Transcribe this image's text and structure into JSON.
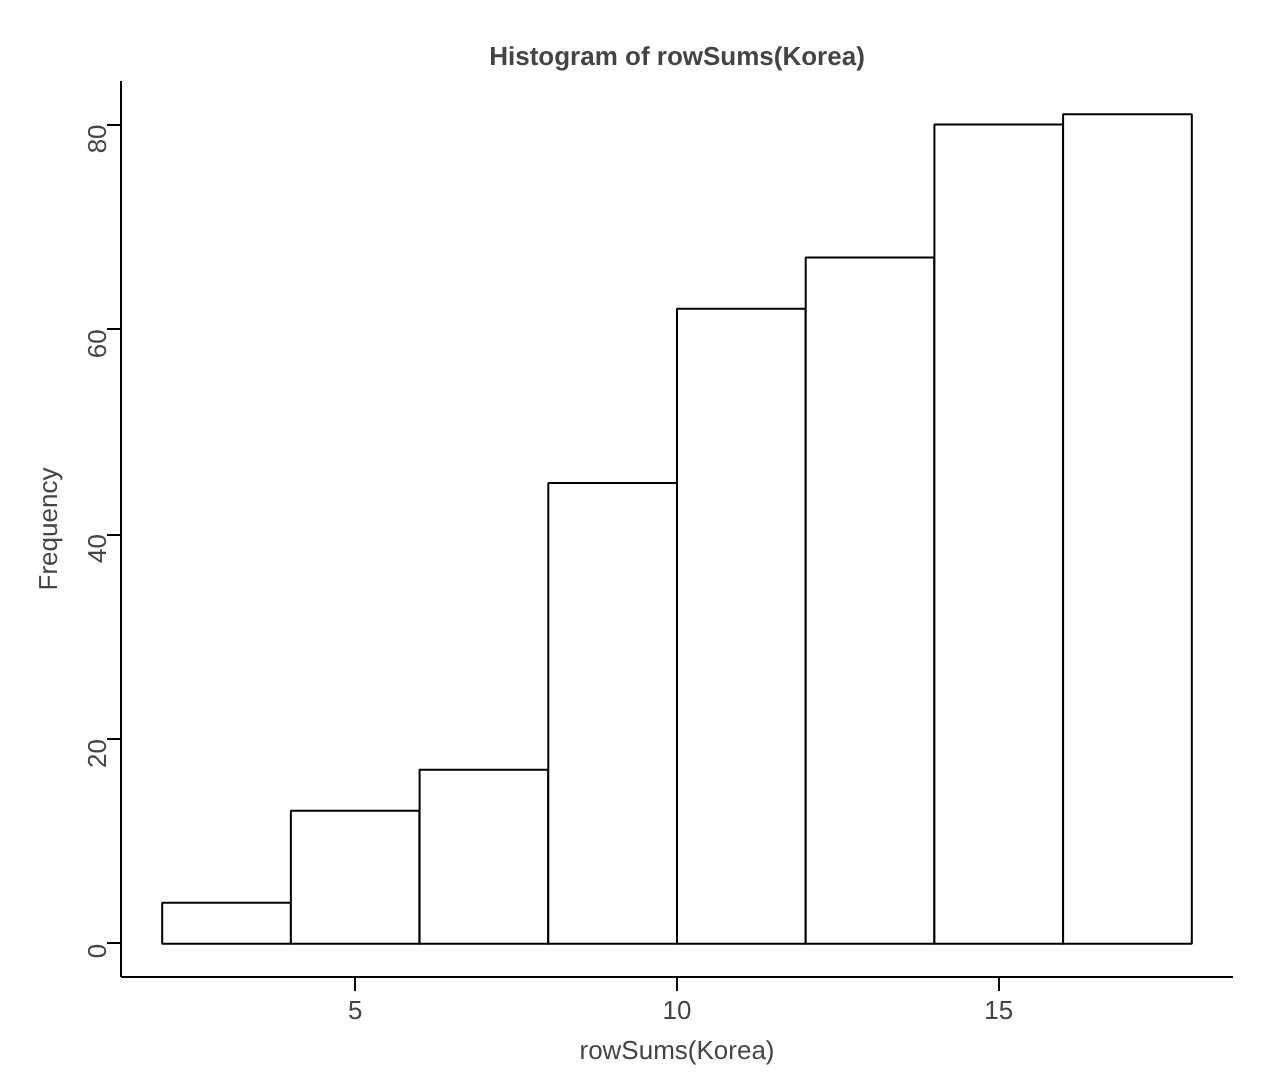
{
  "chart_data": {
    "type": "histogram",
    "title": "Histogram of rowSums(Korea)",
    "xlabel": "rowSums(Korea)",
    "ylabel": "Frequency",
    "bins": [
      2,
      4,
      6,
      8,
      10,
      12,
      14,
      16,
      18
    ],
    "values": [
      4,
      13,
      17,
      45,
      62,
      67,
      80,
      81
    ],
    "color": "#ffffff",
    "xlim": [
      1.36,
      18.64
    ],
    "ylim": [
      -3.24,
      84.24
    ],
    "xticks": [
      5,
      10,
      15
    ],
    "yticks": [
      0,
      20,
      40,
      60,
      80
    ],
    "grid": false
  }
}
